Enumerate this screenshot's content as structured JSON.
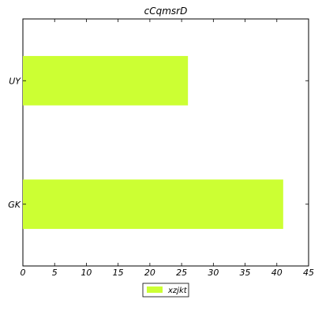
{
  "chart_data": {
    "type": "bar",
    "orientation": "horizontal",
    "title": "cCqmsrD",
    "xlabel": "",
    "ylabel": "",
    "categories": [
      "GK",
      "UY"
    ],
    "series": [
      {
        "name": "xzjkt",
        "values": [
          41,
          26
        ],
        "color": "#ccff33"
      }
    ],
    "xlim": [
      0,
      45
    ],
    "xticks": [
      0,
      5,
      10,
      15,
      20,
      25,
      30,
      35,
      40,
      45
    ],
    "xtick_labels": [
      "0",
      "5",
      "10",
      "15",
      "20",
      "25",
      "30",
      "35",
      "40",
      "45"
    ],
    "grid": false,
    "legend": {
      "placement": "bottom-center"
    }
  }
}
